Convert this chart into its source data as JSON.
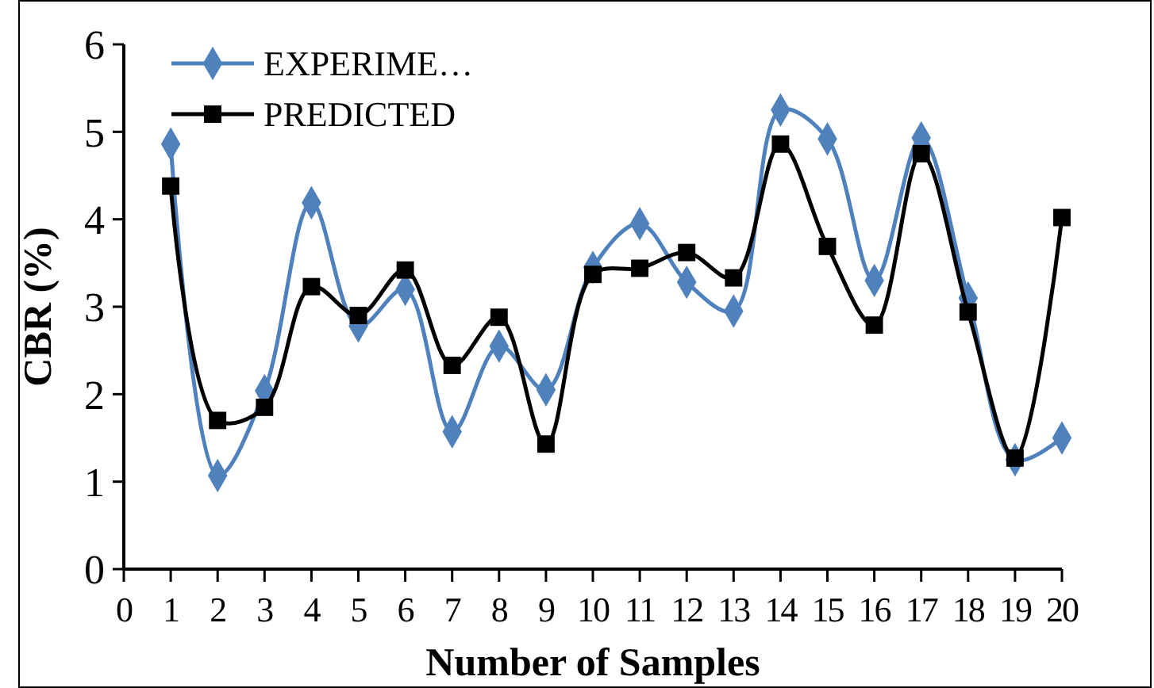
{
  "chart_data": {
    "type": "line",
    "xlabel": "Number of Samples",
    "ylabel": "CBR (%)",
    "x": [
      1,
      2,
      3,
      4,
      5,
      6,
      7,
      8,
      9,
      10,
      11,
      12,
      13,
      14,
      15,
      16,
      17,
      18,
      19,
      20
    ],
    "xlim": [
      0,
      20
    ],
    "xticks": [
      0,
      1,
      2,
      3,
      4,
      5,
      6,
      7,
      8,
      9,
      10,
      11,
      12,
      13,
      14,
      15,
      16,
      17,
      18,
      19,
      20
    ],
    "ylim": [
      0,
      6
    ],
    "yticks": [
      0,
      1,
      2,
      3,
      4,
      5,
      6
    ],
    "grid": false,
    "legend": "top left",
    "line_style": "solid",
    "series": [
      {
        "name": "EXPERIME…",
        "color": "#4f81bd",
        "marker": "diamond",
        "values": [
          4.86,
          1.07,
          2.04,
          4.19,
          2.78,
          3.2,
          1.57,
          2.55,
          2.05,
          3.45,
          3.95,
          3.28,
          2.95,
          5.25,
          4.92,
          3.3,
          4.93,
          3.1,
          1.25,
          1.5
        ]
      },
      {
        "name": "PREDICTED",
        "color": "#000000",
        "marker": "square",
        "values": [
          4.38,
          1.7,
          1.85,
          3.23,
          2.9,
          3.42,
          2.33,
          2.88,
          1.43,
          3.37,
          3.44,
          3.62,
          3.33,
          4.86,
          3.69,
          2.79,
          4.75,
          2.94,
          1.27,
          4.02
        ]
      }
    ]
  }
}
